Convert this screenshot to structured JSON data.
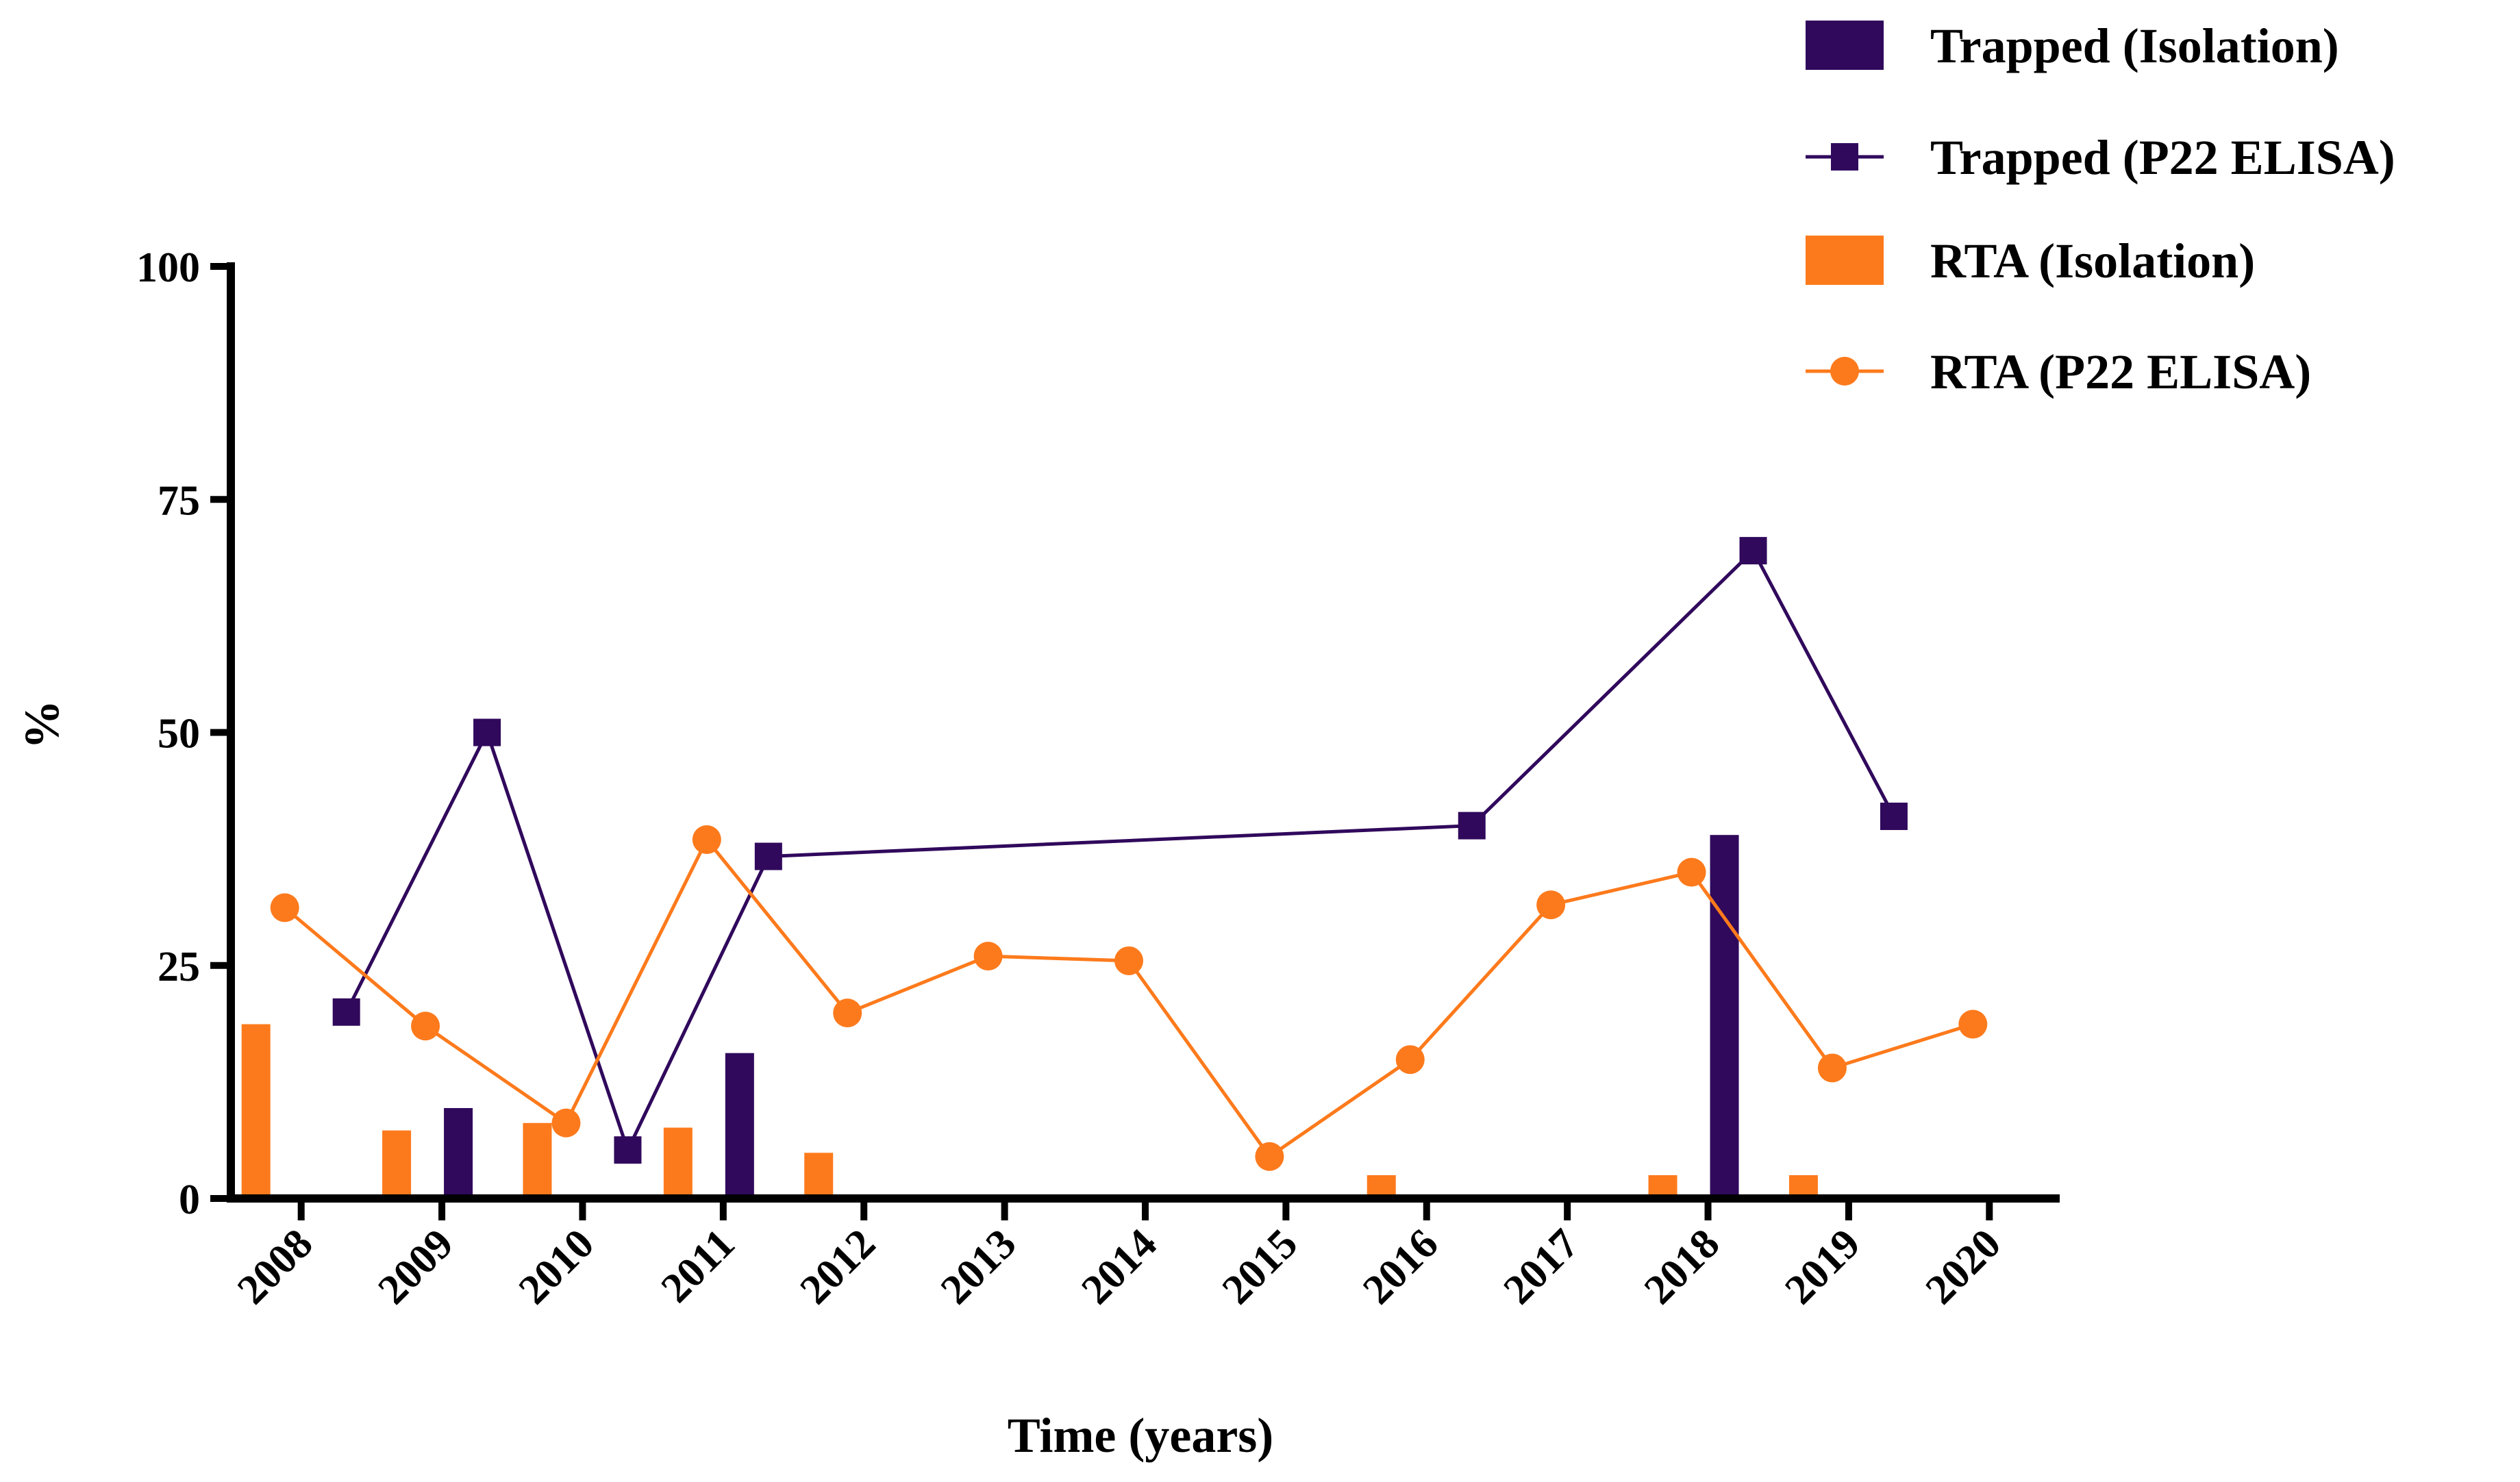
{
  "chart_data": {
    "type": "bar",
    "x_label": "Time (years)",
    "y_label": "%",
    "xlim": [
      2007.5,
      2020.5
    ],
    "xticks": [
      2008,
      2009,
      2010,
      2011,
      2012,
      2013,
      2014,
      2015,
      2016,
      2017,
      2018,
      2019,
      2020
    ],
    "ylim": [
      0,
      100
    ],
    "yticks": [
      0,
      25,
      50,
      75,
      100
    ],
    "legend": "top-right",
    "series": [
      {
        "name": "Trapped (Isolation)",
        "type": "bar",
        "color": "#30095c",
        "x": [
          2009,
          2011,
          2018
        ],
        "values": [
          9.7,
          15.6,
          39
        ]
      },
      {
        "name": "Trapped (P22 ELISA)",
        "type": "line",
        "marker": "square",
        "color": "#30095c",
        "x": [
          2008,
          2009,
          2010,
          2011,
          2016,
          2018,
          2019
        ],
        "values": [
          20,
          50,
          5.2,
          36.7,
          40,
          69.5,
          41
        ]
      },
      {
        "name": "RTA (Isolation)",
        "type": "bar",
        "color": "#fd7a1c",
        "x": [
          2008,
          2009,
          2010,
          2011,
          2012,
          2016,
          2018,
          2019
        ],
        "values": [
          18.7,
          7.3,
          8.1,
          7.6,
          4.9,
          2.5,
          2.5,
          2.5
        ]
      },
      {
        "name": "RTA (P22 ELISA)",
        "type": "line",
        "marker": "circle",
        "color": "#fd7a1c",
        "x": [
          2008,
          2009,
          2010,
          2011,
          2012,
          2013,
          2014,
          2015,
          2016,
          2017,
          2018,
          2019,
          2020
        ],
        "values": [
          31.2,
          18.5,
          8.1,
          38.5,
          19.9,
          26,
          25.5,
          4.5,
          14.9,
          31.5,
          35,
          14,
          18.7
        ]
      }
    ]
  }
}
